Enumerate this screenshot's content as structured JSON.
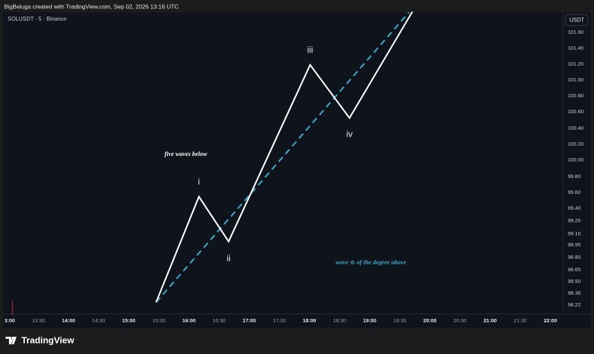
{
  "header": {
    "text": "BigBeluga created with TradingView.com, Sep 02, 2026 13:16 UTC"
  },
  "chart": {
    "symbol": "SOLUSDT · 5 · Binance",
    "price_axis": {
      "currency": "USDT",
      "labels": [
        "101.60",
        "101.40",
        "101.20",
        "101.00",
        "100.80",
        "100.60",
        "100.40",
        "100.20",
        "100.00",
        "99.80",
        "99.60",
        "99.40",
        "99.25",
        "99.10",
        "98.95",
        "98.80",
        "98.65",
        "98.50",
        "98.36",
        "98.22"
      ]
    },
    "time_axis": {
      "labels": [
        "3:00",
        "13:30",
        "14:00",
        "14:30",
        "15:00",
        "15:30",
        "16:00",
        "16:30",
        "17:00",
        "17:30",
        "18:00",
        "18:30",
        "19:00",
        "19:30",
        "20:00",
        "20:30",
        "21:00",
        "21:30",
        "22:00"
      ]
    },
    "wave_labels": [
      "i",
      "ii",
      "iii",
      "iv"
    ],
    "annotations": [
      "five waves below",
      "wave ⊙ of the degree above"
    ]
  },
  "footer": {
    "logo": "TradingView"
  }
}
